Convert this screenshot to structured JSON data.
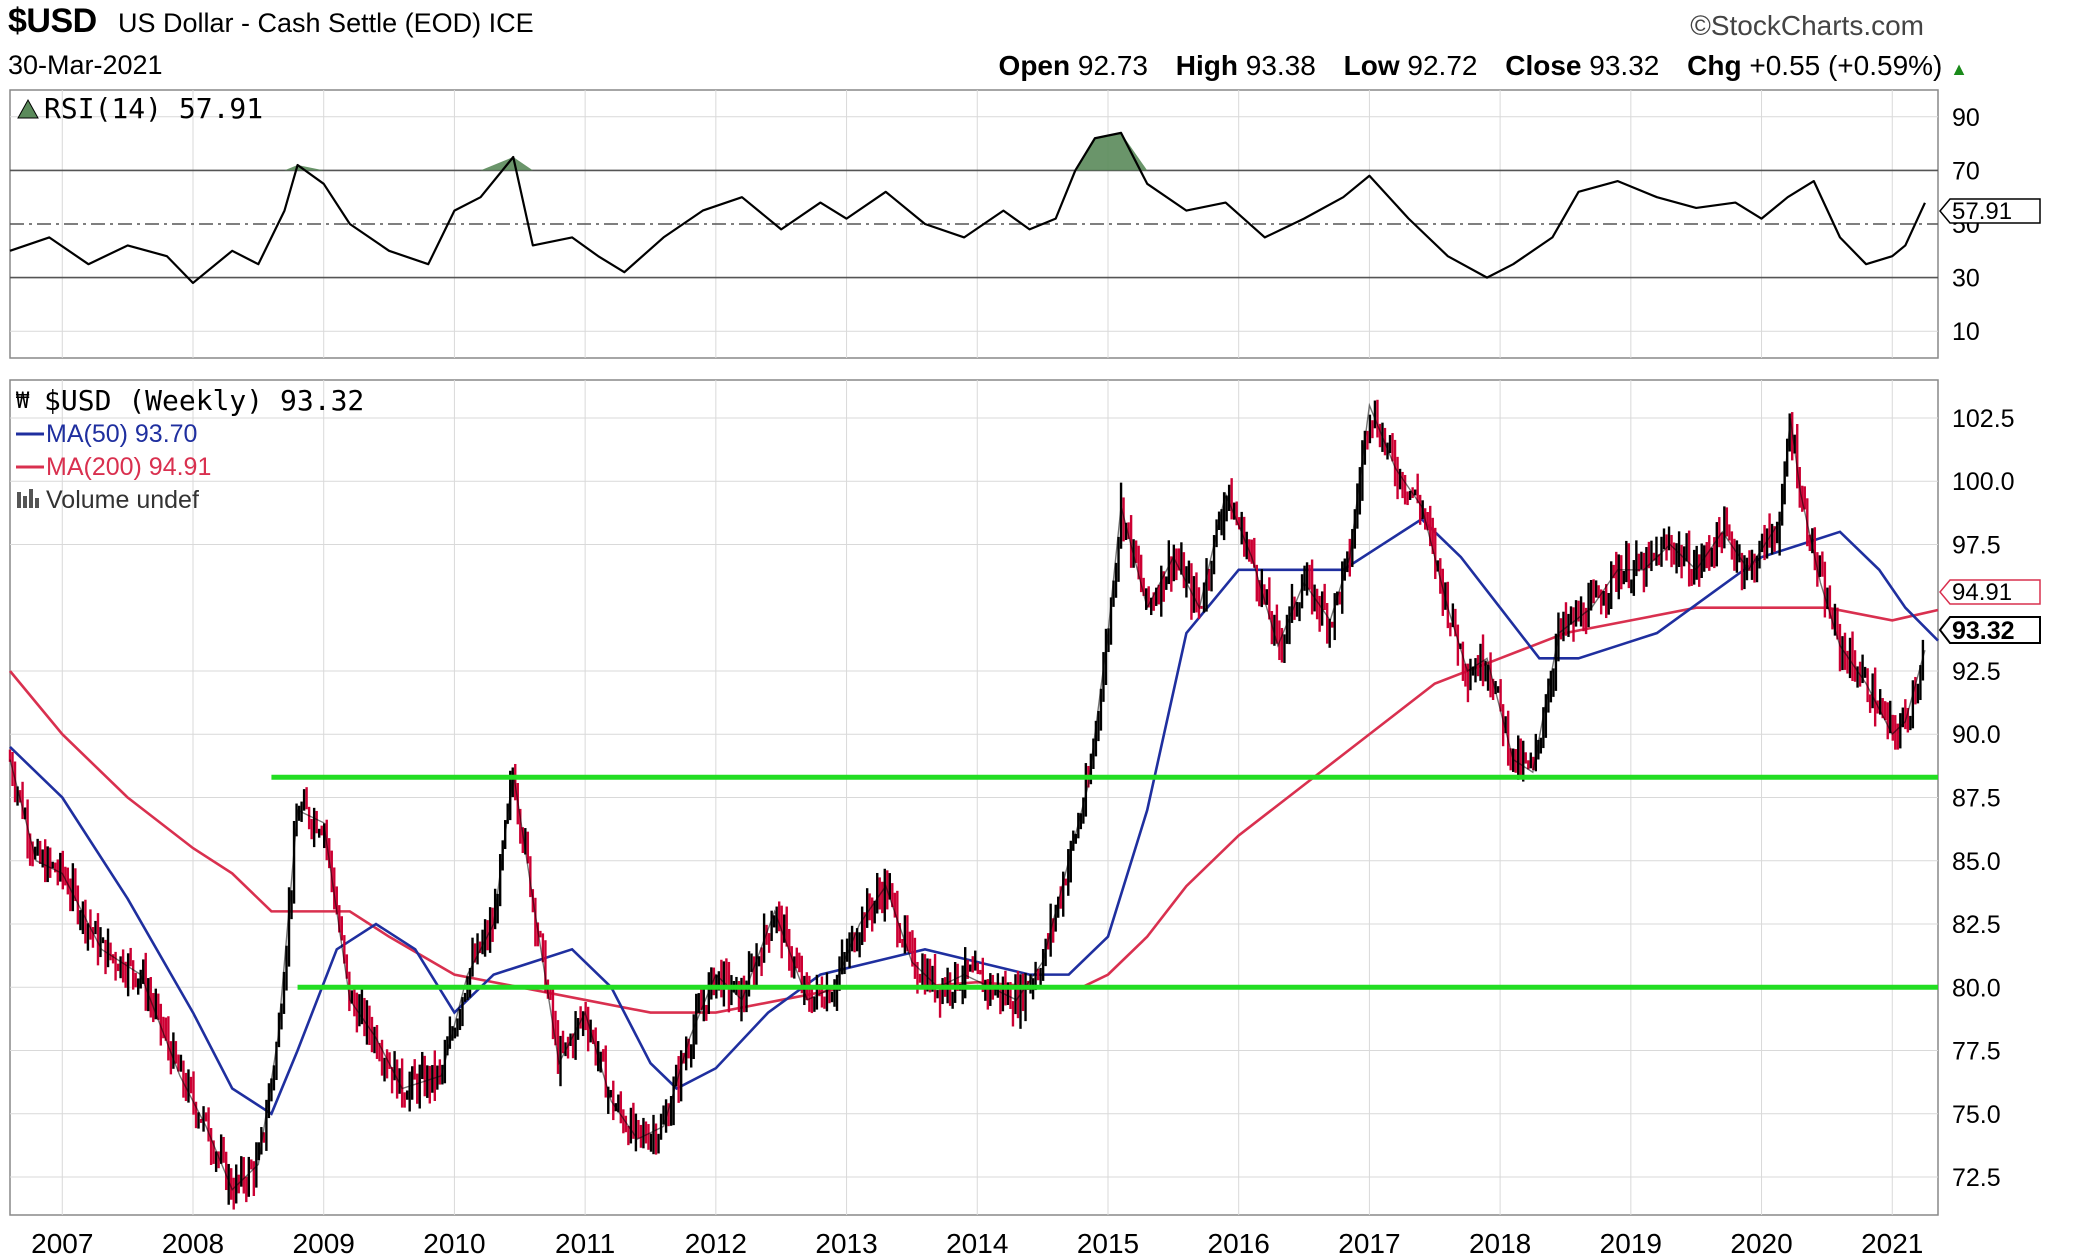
{
  "header": {
    "symbol": "$USD",
    "description": "US Dollar - Cash Settle (EOD) ICE",
    "date": "30-Mar-2021",
    "brand": "©StockCharts.com",
    "open_label": "Open",
    "open": "92.73",
    "high_label": "High",
    "high": "93.38",
    "low_label": "Low",
    "low": "92.72",
    "close_label": "Close",
    "close": "93.32",
    "chg_label": "Chg",
    "chg": "+0.55 (+0.59%)",
    "chg_arrow": "up-triangle-icon"
  },
  "colors": {
    "price_up": "#000000",
    "price_down": "#cc0033",
    "ma50": "#1f2f9f",
    "ma200": "#d9304f",
    "support_lines": "#22dd22",
    "rsi_fill": "#5a8a5a",
    "grid": "#d9d9d9"
  },
  "chart_data": [
    {
      "type": "line",
      "title": "RSI(14) 57.91",
      "ylim": [
        0,
        100
      ],
      "y_ticks": [
        90,
        70,
        50,
        30,
        10
      ],
      "reference_lines": [
        70,
        50,
        30
      ],
      "last_value": "57.91",
      "x": [
        2006.6,
        2006.9,
        2007.2,
        2007.5,
        2007.8,
        2008.0,
        2008.3,
        2008.5,
        2008.7,
        2008.8,
        2009.0,
        2009.2,
        2009.5,
        2009.8,
        2010.0,
        2010.2,
        2010.45,
        2010.6,
        2010.9,
        2011.1,
        2011.3,
        2011.6,
        2011.9,
        2012.2,
        2012.5,
        2012.8,
        2013.0,
        2013.3,
        2013.6,
        2013.9,
        2014.2,
        2014.4,
        2014.6,
        2014.75,
        2014.9,
        2015.1,
        2015.3,
        2015.6,
        2015.9,
        2016.2,
        2016.5,
        2016.8,
        2017.0,
        2017.3,
        2017.6,
        2017.9,
        2018.1,
        2018.4,
        2018.6,
        2018.9,
        2019.2,
        2019.5,
        2019.8,
        2020.0,
        2020.2,
        2020.4,
        2020.6,
        2020.8,
        2021.0,
        2021.1,
        2021.25
      ],
      "values": [
        40,
        45,
        35,
        42,
        38,
        28,
        40,
        35,
        55,
        72,
        65,
        50,
        40,
        35,
        55,
        60,
        75,
        42,
        45,
        38,
        32,
        45,
        55,
        60,
        48,
        58,
        52,
        62,
        50,
        45,
        55,
        48,
        52,
        70,
        82,
        84,
        65,
        55,
        58,
        45,
        52,
        60,
        68,
        52,
        38,
        30,
        35,
        45,
        62,
        66,
        60,
        56,
        58,
        52,
        60,
        66,
        45,
        35,
        38,
        42,
        57.91
      ],
      "xlim": [
        2006.6,
        2021.35
      ]
    },
    {
      "type": "line",
      "title": "$USD (Weekly) 93.32",
      "subtitle": "Volume undef",
      "ylim": [
        71,
        104
      ],
      "y_ticks": [
        102.5,
        100.0,
        97.5,
        92.5,
        90.0,
        87.5,
        85.0,
        82.5,
        80.0,
        77.5,
        75.0,
        72.5
      ],
      "x_ticks": [
        "2007",
        "2008",
        "2009",
        "2010",
        "2011",
        "2012",
        "2013",
        "2014",
        "2015",
        "2016",
        "2017",
        "2018",
        "2019",
        "2020",
        "2021"
      ],
      "x_tick_values": [
        2007,
        2008,
        2009,
        2010,
        2011,
        2012,
        2013,
        2014,
        2015,
        2016,
        2017,
        2018,
        2019,
        2020,
        2021
      ],
      "xlim": [
        2006.6,
        2021.35
      ],
      "horizontal_lines": [
        {
          "y": 88.3,
          "from_x": 2008.6
        },
        {
          "y": 80.0,
          "from_x": 2008.8
        }
      ],
      "series": [
        {
          "name": "$USD",
          "x": [
            2006.6,
            2006.8,
            2007.0,
            2007.3,
            2007.6,
            2007.9,
            2008.1,
            2008.3,
            2008.5,
            2008.65,
            2008.8,
            2009.0,
            2009.2,
            2009.4,
            2009.6,
            2009.9,
            2010.1,
            2010.3,
            2010.45,
            2010.6,
            2010.8,
            2011.0,
            2011.2,
            2011.4,
            2011.6,
            2011.8,
            2012.0,
            2012.2,
            2012.45,
            2012.7,
            2012.9,
            2013.1,
            2013.3,
            2013.5,
            2013.7,
            2013.9,
            2014.1,
            2014.3,
            2014.5,
            2014.7,
            2014.85,
            2015.0,
            2015.1,
            2015.3,
            2015.5,
            2015.7,
            2015.9,
            2016.1,
            2016.3,
            2016.5,
            2016.7,
            2016.85,
            2017.0,
            2017.2,
            2017.4,
            2017.6,
            2017.75,
            2017.9,
            2018.1,
            2018.25,
            2018.45,
            2018.7,
            2018.9,
            2019.1,
            2019.3,
            2019.5,
            2019.7,
            2019.9,
            2020.15,
            2020.22,
            2020.3,
            2020.45,
            2020.6,
            2020.8,
            2021.0,
            2021.1,
            2021.25
          ],
          "values": [
            89.0,
            85.0,
            84.5,
            81.5,
            80.5,
            76.5,
            74.5,
            72.0,
            73.0,
            78.0,
            87.0,
            86.5,
            79.5,
            78.0,
            76.0,
            76.5,
            80.5,
            82.5,
            88.5,
            83.5,
            77.0,
            79.0,
            75.5,
            74.0,
            74.5,
            78.0,
            80.5,
            79.5,
            83.0,
            79.5,
            80.0,
            82.5,
            84.0,
            81.0,
            80.0,
            80.5,
            80.0,
            79.5,
            81.0,
            85.0,
            88.0,
            94.0,
            99.0,
            95.0,
            97.0,
            95.0,
            99.5,
            97.0,
            93.5,
            96.0,
            94.5,
            97.0,
            103.0,
            100.5,
            99.0,
            95.0,
            92.5,
            93.0,
            89.0,
            88.5,
            94.0,
            95.0,
            96.5,
            96.5,
            97.5,
            96.5,
            98.0,
            96.5,
            98.5,
            102.5,
            99.5,
            96.0,
            93.5,
            92.0,
            90.0,
            90.5,
            93.32
          ]
        },
        {
          "name": "MA(50) 93.70",
          "x": [
            2006.6,
            2007.0,
            2007.5,
            2008.0,
            2008.3,
            2008.6,
            2008.8,
            2009.1,
            2009.4,
            2009.7,
            2010.0,
            2010.3,
            2010.6,
            2010.9,
            2011.2,
            2011.5,
            2011.7,
            2012.0,
            2012.4,
            2012.8,
            2013.2,
            2013.6,
            2014.0,
            2014.4,
            2014.7,
            2015.0,
            2015.3,
            2015.6,
            2016.0,
            2016.4,
            2016.8,
            2017.1,
            2017.4,
            2017.7,
            2018.0,
            2018.3,
            2018.6,
            2018.9,
            2019.2,
            2019.6,
            2020.0,
            2020.3,
            2020.6,
            2020.9,
            2021.1,
            2021.35
          ],
          "values": [
            89.5,
            87.5,
            83.5,
            79.0,
            76.0,
            75.0,
            77.5,
            81.5,
            82.5,
            81.5,
            79.0,
            80.5,
            81.0,
            81.5,
            80.0,
            77.0,
            76.0,
            76.8,
            79.0,
            80.5,
            81.0,
            81.5,
            81.0,
            80.5,
            80.5,
            82.0,
            87.0,
            94.0,
            96.5,
            96.5,
            96.5,
            97.5,
            98.5,
            97.0,
            95.0,
            93.0,
            93.0,
            93.5,
            94.0,
            95.5,
            97.0,
            97.5,
            98.0,
            96.5,
            95.0,
            93.7
          ]
        },
        {
          "name": "MA(200) 94.91",
          "x": [
            2006.6,
            2007.0,
            2007.5,
            2008.0,
            2008.3,
            2008.6,
            2008.9,
            2009.2,
            2009.5,
            2010.0,
            2010.5,
            2011.0,
            2011.5,
            2012.0,
            2012.5,
            2013.0,
            2013.5,
            2014.0,
            2014.5,
            2014.8,
            2015.0,
            2015.3,
            2015.6,
            2016.0,
            2016.5,
            2017.0,
            2017.5,
            2018.0,
            2018.5,
            2019.0,
            2019.5,
            2020.0,
            2020.5,
            2021.0,
            2021.35
          ],
          "values": [
            92.5,
            90.0,
            87.5,
            85.5,
            84.5,
            83.0,
            83.0,
            83.0,
            82.0,
            80.5,
            80.0,
            79.5,
            79.0,
            79.0,
            79.5,
            80.0,
            80.0,
            80.2,
            80.0,
            80.0,
            80.5,
            82.0,
            84.0,
            86.0,
            88.0,
            90.0,
            92.0,
            93.0,
            94.0,
            94.5,
            95.0,
            95.0,
            95.0,
            94.5,
            94.91
          ]
        }
      ]
    }
  ],
  "legend": {
    "price": "$USD (Weekly) 93.32",
    "ma50": "MA(50) 93.70",
    "ma200": "MA(200) 94.91",
    "volume": "Volume undef"
  },
  "rsi_legend": "RSI(14) 57.91",
  "badges": {
    "rsi": "57.91",
    "ma200": "94.91",
    "close": "93.32"
  }
}
